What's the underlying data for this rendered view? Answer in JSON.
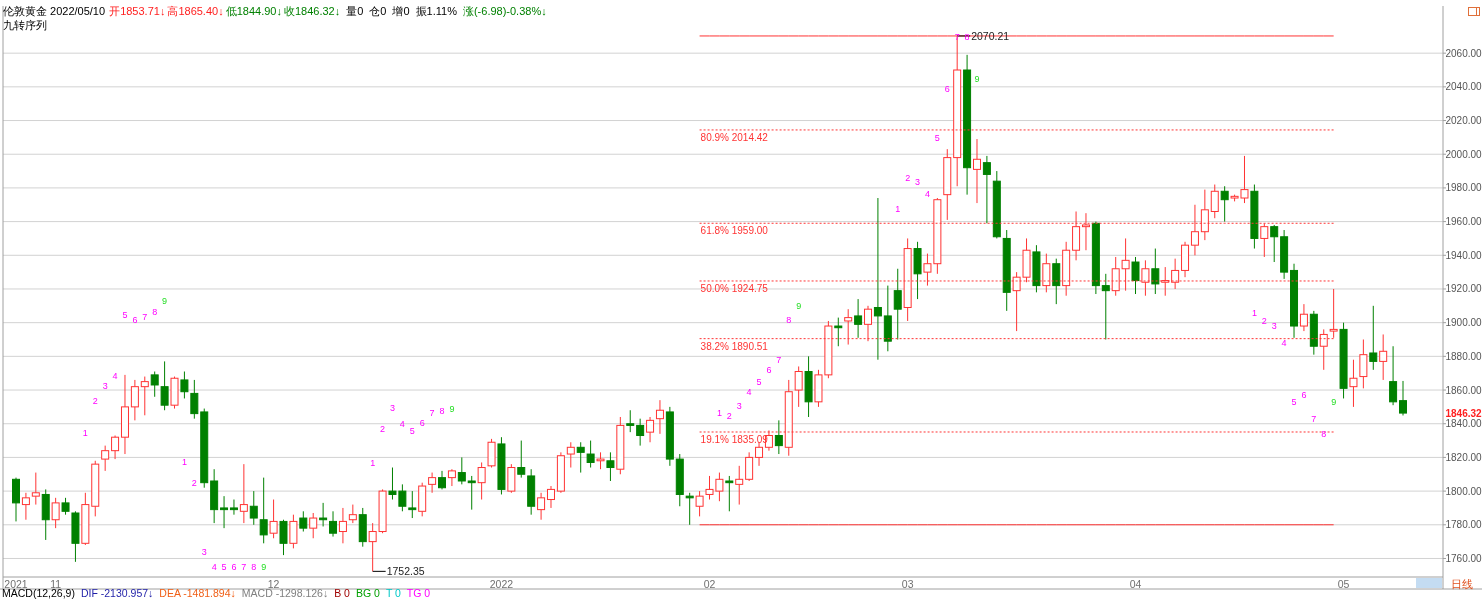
{
  "chart_data": {
    "type": "candlestick",
    "title": "伦敦黄金 2022/05/10",
    "categories": [
      "2021",
      null,
      null,
      null,
      "11",
      null,
      null,
      null,
      null,
      null,
      null,
      null,
      null,
      null,
      null,
      null,
      null,
      null,
      null,
      null,
      null,
      null,
      null,
      null,
      null,
      null,
      "12",
      null,
      null,
      null,
      null,
      null,
      null,
      null,
      null,
      null,
      null,
      null,
      null,
      null,
      null,
      null,
      null,
      null,
      null,
      null,
      null,
      null,
      null,
      "2022",
      null,
      null,
      null,
      null,
      null,
      null,
      null,
      null,
      null,
      null,
      null,
      null,
      null,
      null,
      null,
      null,
      null,
      null,
      null,
      null,
      "02",
      null,
      null,
      null,
      null,
      null,
      null,
      null,
      null,
      null,
      null,
      null,
      null,
      null,
      null,
      null,
      null,
      null,
      null,
      null,
      "03",
      null,
      null,
      null,
      null,
      null,
      null,
      null,
      null,
      null,
      null,
      null,
      null,
      null,
      null,
      null,
      null,
      null,
      null,
      null,
      null,
      null,
      null,
      "04",
      null,
      null,
      null,
      null,
      null,
      null,
      null,
      null,
      null,
      null,
      null,
      null,
      null,
      null,
      null,
      null,
      null,
      null,
      null,
      null,
      "05",
      null,
      null,
      null,
      null,
      null,
      null
    ],
    "ohlc": [
      [
        1807,
        1808,
        1782,
        1793
      ],
      [
        1792,
        1799,
        1783,
        1796
      ],
      [
        1797,
        1811,
        1792,
        1799
      ],
      [
        1798,
        1801,
        1771,
        1783
      ],
      [
        1783,
        1796,
        1778,
        1793
      ],
      [
        1793,
        1796,
        1786,
        1788
      ],
      [
        1787,
        1788,
        1758,
        1769
      ],
      [
        1769,
        1799,
        1768,
        1792
      ],
      [
        1791,
        1818,
        1785,
        1816
      ],
      [
        1819,
        1827,
        1812,
        1824
      ],
      [
        1824,
        1833,
        1819,
        1832
      ],
      [
        1832,
        1869,
        1822,
        1850
      ],
      [
        1850,
        1866,
        1842,
        1862
      ],
      [
        1862,
        1868,
        1845,
        1865
      ],
      [
        1869,
        1871,
        1856,
        1863
      ],
      [
        1862,
        1877,
        1848,
        1851
      ],
      [
        1851,
        1868,
        1849,
        1867
      ],
      [
        1866,
        1871,
        1855,
        1859
      ],
      [
        1858,
        1866,
        1843,
        1846
      ],
      [
        1847,
        1849,
        1802,
        1805
      ],
      [
        1806,
        1813,
        1781,
        1789
      ],
      [
        1790,
        1797,
        1778,
        1789
      ],
      [
        1790,
        1795,
        1786,
        1789
      ],
      [
        1788,
        1816,
        1781,
        1792
      ],
      [
        1791,
        1800,
        1780,
        1784
      ],
      [
        1783,
        1808,
        1769,
        1774
      ],
      [
        1775,
        1795,
        1772,
        1782
      ],
      [
        1782,
        1783,
        1762,
        1769
      ],
      [
        1769,
        1786,
        1766,
        1782
      ],
      [
        1784,
        1788,
        1776,
        1778
      ],
      [
        1778,
        1787,
        1772,
        1784
      ],
      [
        1784,
        1793,
        1779,
        1783
      ],
      [
        1782,
        1788,
        1773,
        1775
      ],
      [
        1776,
        1790,
        1769,
        1782
      ],
      [
        1783,
        1792,
        1781,
        1786
      ],
      [
        1786,
        1790,
        1767,
        1770
      ],
      [
        1770,
        1781,
        1752.35,
        1776
      ],
      [
        1776,
        1801,
        1775,
        1800
      ],
      [
        1800,
        1814,
        1795,
        1798
      ],
      [
        1800,
        1804,
        1788,
        1791
      ],
      [
        1790,
        1800,
        1784,
        1789
      ],
      [
        1788,
        1805,
        1785,
        1803
      ],
      [
        1804,
        1811,
        1799,
        1808
      ],
      [
        1808,
        1812,
        1801,
        1802
      ],
      [
        1808,
        1813,
        1803,
        1812
      ],
      [
        1811,
        1820,
        1804,
        1806
      ],
      [
        1806,
        1809,
        1789,
        1805
      ],
      [
        1805,
        1817,
        1795,
        1814
      ],
      [
        1815,
        1831,
        1814,
        1829
      ],
      [
        1828,
        1832,
        1798,
        1801
      ],
      [
        1800,
        1816,
        1799,
        1814
      ],
      [
        1814,
        1830,
        1808,
        1810
      ],
      [
        1809,
        1813,
        1786,
        1791
      ],
      [
        1789,
        1799,
        1783,
        1796
      ],
      [
        1795,
        1803,
        1790,
        1801
      ],
      [
        1800,
        1823,
        1799,
        1821
      ],
      [
        1822,
        1829,
        1814,
        1826
      ],
      [
        1826,
        1829,
        1811,
        1823
      ],
      [
        1822,
        1830,
        1814,
        1817
      ],
      [
        1818,
        1823,
        1813,
        1819
      ],
      [
        1818,
        1823,
        1806,
        1814
      ],
      [
        1813,
        1844,
        1810,
        1839
      ],
      [
        1840,
        1848,
        1835,
        1839
      ],
      [
        1839,
        1843,
        1827,
        1833
      ],
      [
        1835,
        1844,
        1829,
        1842
      ],
      [
        1843,
        1854,
        1834,
        1848
      ],
      [
        1847,
        1850,
        1815,
        1819
      ],
      [
        1819,
        1822,
        1791,
        1798
      ],
      [
        1797,
        1799,
        1780,
        1796
      ],
      [
        1791,
        1800,
        1785,
        1797
      ],
      [
        1798,
        1809,
        1795,
        1801
      ],
      [
        1800,
        1811,
        1794,
        1807
      ],
      [
        1806,
        1809,
        1788,
        1805
      ],
      [
        1804,
        1815,
        1792,
        1807
      ],
      [
        1807,
        1823,
        1806,
        1820
      ],
      [
        1820,
        1829,
        1815,
        1826
      ],
      [
        1826,
        1836,
        1824,
        1833
      ],
      [
        1833,
        1842,
        1822,
        1827
      ],
      [
        1826,
        1866,
        1821,
        1859
      ],
      [
        1860,
        1874,
        1850,
        1871
      ],
      [
        1871,
        1880,
        1844,
        1853
      ],
      [
        1853,
        1872,
        1850,
        1869
      ],
      [
        1869,
        1901,
        1867,
        1898
      ],
      [
        1898,
        1903,
        1886,
        1897
      ],
      [
        1901,
        1908,
        1887,
        1903
      ],
      [
        1904,
        1914,
        1891,
        1899
      ],
      [
        1899,
        1910,
        1889,
        1908
      ],
      [
        1909,
        1974,
        1878,
        1904
      ],
      [
        1904,
        1922,
        1883,
        1889
      ],
      [
        1919,
        1932,
        1890,
        1908
      ],
      [
        1909,
        1950,
        1901,
        1944
      ],
      [
        1944,
        1948,
        1914,
        1929
      ],
      [
        1930,
        1941,
        1922,
        1935
      ],
      [
        1935,
        1974,
        1929,
        1973
      ],
      [
        1976,
        2003,
        1961,
        1998
      ],
      [
        1998,
        2070.21,
        1981,
        2050
      ],
      [
        2050,
        2059,
        1976,
        1992
      ],
      [
        1991,
        2009,
        1971,
        1997
      ],
      [
        1995,
        1999,
        1959,
        1988
      ],
      [
        1984,
        1990,
        1950,
        1951
      ],
      [
        1950,
        1955,
        1907,
        1918
      ],
      [
        1919,
        1930,
        1895,
        1927
      ],
      [
        1927,
        1950,
        1924,
        1943
      ],
      [
        1942,
        1946,
        1918,
        1922
      ],
      [
        1922,
        1941,
        1918,
        1935
      ],
      [
        1935,
        1938,
        1911,
        1922
      ],
      [
        1922,
        1948,
        1916,
        1943
      ],
      [
        1943,
        1966,
        1937,
        1957
      ],
      [
        1957,
        1965,
        1943,
        1958
      ],
      [
        1959,
        1960,
        1917,
        1922
      ],
      [
        1922,
        1929,
        1890,
        1919
      ],
      [
        1919,
        1939,
        1916,
        1932
      ],
      [
        1932,
        1950,
        1919,
        1937
      ],
      [
        1936,
        1939,
        1917,
        1925
      ],
      [
        1924,
        1937,
        1916,
        1932
      ],
      [
        1932,
        1944,
        1917,
        1923
      ],
      [
        1924,
        1933,
        1916,
        1925
      ],
      [
        1924,
        1938,
        1920,
        1931
      ],
      [
        1931,
        1948,
        1927,
        1946
      ],
      [
        1946,
        1970,
        1940,
        1954
      ],
      [
        1954,
        1979,
        1949,
        1967
      ],
      [
        1966,
        1982,
        1962,
        1978
      ],
      [
        1978,
        1981,
        1960,
        1973
      ],
      [
        1974,
        1976,
        1972,
        1975
      ],
      [
        1974,
        1999,
        1971,
        1979
      ],
      [
        1978,
        1982,
        1944,
        1950
      ],
      [
        1950,
        1959,
        1939,
        1957
      ],
      [
        1957,
        1958,
        1936,
        1951
      ],
      [
        1951,
        1955,
        1926,
        1930
      ],
      [
        1931,
        1935,
        1891,
        1898
      ],
      [
        1898,
        1911,
        1895,
        1905
      ],
      [
        1905,
        1907,
        1881,
        1886
      ],
      [
        1886,
        1896,
        1872,
        1893
      ],
      [
        1895,
        1920,
        1891,
        1896
      ],
      [
        1896,
        1900,
        1855,
        1861
      ],
      [
        1862,
        1878,
        1850,
        1867
      ],
      [
        1868,
        1890,
        1861,
        1881
      ],
      [
        1882,
        1910,
        1872,
        1877
      ],
      [
        1877,
        1893,
        1866,
        1883
      ],
      [
        1865,
        1886,
        1851,
        1853
      ],
      [
        1853.71,
        1865.4,
        1844.9,
        1846.32
      ]
    ],
    "series": [
      {
        "type": "line",
        "color": "#ff3333",
        "line_style": "solid",
        "values": [
          null,
          null,
          null,
          null,
          null,
          null,
          null,
          null,
          null,
          null,
          null,
          null,
          null,
          null,
          null,
          null,
          null,
          null,
          null,
          null,
          null,
          null,
          null,
          null,
          null,
          null,
          null,
          null,
          null,
          null,
          null,
          null,
          null,
          null,
          null,
          null,
          null,
          null,
          null,
          null,
          null,
          null,
          null,
          null,
          null,
          null,
          null,
          null,
          null,
          null,
          null,
          null,
          null,
          null,
          null,
          null,
          null,
          null,
          null,
          null,
          null,
          null,
          null,
          null,
          null,
          null,
          null,
          null,
          null,
          2070.21,
          2070.21,
          2070.21,
          2070.21,
          2070.21,
          2070.21,
          2070.21,
          2070.21,
          2070.21,
          2070.21,
          2070.21,
          2070.21,
          2070.21,
          2070.21,
          2070.21,
          2070.21,
          2070.21,
          2070.21,
          2070.21,
          2070.21,
          2070.21,
          2070.21,
          2070.21,
          2070.21,
          2070.21,
          2070.21,
          2070.21,
          2070.21,
          2070.21,
          2070.21,
          2070.21,
          2070.21,
          2070.21,
          2070.21,
          2070.21,
          2070.21,
          2070.21,
          2070.21,
          2070.21,
          2070.21,
          2070.21,
          2070.21,
          2070.21,
          2070.21,
          2070.21,
          2070.21,
          2070.21,
          2070.21,
          2070.21,
          2070.21,
          2070.21,
          2070.21,
          2070.21,
          2070.21,
          2070.21,
          2070.21,
          2070.21,
          2070.21,
          2070.21,
          2070.21,
          2070.21,
          2070.21,
          2070.21,
          2070.21,
          2070.21,
          null,
          null,
          null,
          null,
          null,
          null,
          null
        ]
      },
      {
        "type": "line",
        "color": "#ff3333",
        "line_style": "dotted",
        "name": "80.9% 2014.42",
        "values": [
          null,
          null,
          null,
          null,
          null,
          null,
          null,
          null,
          null,
          null,
          null,
          null,
          null,
          null,
          null,
          null,
          null,
          null,
          null,
          null,
          null,
          null,
          null,
          null,
          null,
          null,
          null,
          null,
          null,
          null,
          null,
          null,
          null,
          null,
          null,
          null,
          null,
          null,
          null,
          null,
          null,
          null,
          null,
          null,
          null,
          null,
          null,
          null,
          null,
          null,
          null,
          null,
          null,
          null,
          null,
          null,
          null,
          null,
          null,
          null,
          null,
          null,
          null,
          null,
          null,
          null,
          null,
          null,
          null,
          2014.42,
          2014.42,
          2014.42,
          2014.42,
          2014.42,
          2014.42,
          2014.42,
          2014.42,
          2014.42,
          2014.42,
          2014.42,
          2014.42,
          2014.42,
          2014.42,
          2014.42,
          2014.42,
          2014.42,
          2014.42,
          2014.42,
          2014.42,
          2014.42,
          2014.42,
          2014.42,
          2014.42,
          2014.42,
          2014.42,
          2014.42,
          2014.42,
          2014.42,
          2014.42,
          2014.42,
          2014.42,
          2014.42,
          2014.42,
          2014.42,
          2014.42,
          2014.42,
          2014.42,
          2014.42,
          2014.42,
          2014.42,
          2014.42,
          2014.42,
          2014.42,
          2014.42,
          2014.42,
          2014.42,
          2014.42,
          2014.42,
          2014.42,
          2014.42,
          2014.42,
          2014.42,
          2014.42,
          2014.42,
          2014.42,
          2014.42,
          2014.42,
          2014.42,
          2014.42,
          2014.42,
          2014.42,
          2014.42,
          2014.42,
          2014.42,
          null,
          null,
          null,
          null,
          null,
          null,
          null
        ]
      },
      {
        "type": "line",
        "color": "#ff3333",
        "line_style": "dotted",
        "name": "61.8% 1959.00",
        "values": [
          null,
          null,
          null,
          null,
          null,
          null,
          null,
          null,
          null,
          null,
          null,
          null,
          null,
          null,
          null,
          null,
          null,
          null,
          null,
          null,
          null,
          null,
          null,
          null,
          null,
          null,
          null,
          null,
          null,
          null,
          null,
          null,
          null,
          null,
          null,
          null,
          null,
          null,
          null,
          null,
          null,
          null,
          null,
          null,
          null,
          null,
          null,
          null,
          null,
          null,
          null,
          null,
          null,
          null,
          null,
          null,
          null,
          null,
          null,
          null,
          null,
          null,
          null,
          null,
          null,
          null,
          null,
          null,
          null,
          1959.0,
          1959.0,
          1959.0,
          1959.0,
          1959.0,
          1959.0,
          1959.0,
          1959.0,
          1959.0,
          1959.0,
          1959.0,
          1959.0,
          1959.0,
          1959.0,
          1959.0,
          1959.0,
          1959.0,
          1959.0,
          1959.0,
          1959.0,
          1959.0,
          1959.0,
          1959.0,
          1959.0,
          1959.0,
          1959.0,
          1959.0,
          1959.0,
          1959.0,
          1959.0,
          1959.0,
          1959.0,
          1959.0,
          1959.0,
          1959.0,
          1959.0,
          1959.0,
          1959.0,
          1959.0,
          1959.0,
          1959.0,
          1959.0,
          1959.0,
          1959.0,
          1959.0,
          1959.0,
          1959.0,
          1959.0,
          1959.0,
          1959.0,
          1959.0,
          1959.0,
          1959.0,
          1959.0,
          1959.0,
          1959.0,
          1959.0,
          1959.0,
          1959.0,
          1959.0,
          1959.0,
          1959.0,
          1959.0,
          1959.0,
          1959.0,
          null,
          null,
          null,
          null,
          null,
          null,
          null
        ]
      },
      {
        "type": "line",
        "color": "#ff3333",
        "line_style": "dotted",
        "name": "50.0% 1924.75",
        "values": [
          null,
          null,
          null,
          null,
          null,
          null,
          null,
          null,
          null,
          null,
          null,
          null,
          null,
          null,
          null,
          null,
          null,
          null,
          null,
          null,
          null,
          null,
          null,
          null,
          null,
          null,
          null,
          null,
          null,
          null,
          null,
          null,
          null,
          null,
          null,
          null,
          null,
          null,
          null,
          null,
          null,
          null,
          null,
          null,
          null,
          null,
          null,
          null,
          null,
          null,
          null,
          null,
          null,
          null,
          null,
          null,
          null,
          null,
          null,
          null,
          null,
          null,
          null,
          null,
          null,
          null,
          null,
          null,
          null,
          1924.75,
          1924.75,
          1924.75,
          1924.75,
          1924.75,
          1924.75,
          1924.75,
          1924.75,
          1924.75,
          1924.75,
          1924.75,
          1924.75,
          1924.75,
          1924.75,
          1924.75,
          1924.75,
          1924.75,
          1924.75,
          1924.75,
          1924.75,
          1924.75,
          1924.75,
          1924.75,
          1924.75,
          1924.75,
          1924.75,
          1924.75,
          1924.75,
          1924.75,
          1924.75,
          1924.75,
          1924.75,
          1924.75,
          1924.75,
          1924.75,
          1924.75,
          1924.75,
          1924.75,
          1924.75,
          1924.75,
          1924.75,
          1924.75,
          1924.75,
          1924.75,
          1924.75,
          1924.75,
          1924.75,
          1924.75,
          1924.75,
          1924.75,
          1924.75,
          1924.75,
          1924.75,
          1924.75,
          1924.75,
          1924.75,
          1924.75,
          1924.75,
          1924.75,
          1924.75,
          1924.75,
          1924.75,
          1924.75,
          1924.75,
          1924.75,
          null,
          null,
          null,
          null,
          null,
          null,
          null
        ]
      },
      {
        "type": "line",
        "color": "#ff3333",
        "line_style": "dotted",
        "name": "38.2% 1890.51",
        "values": [
          null,
          null,
          null,
          null,
          null,
          null,
          null,
          null,
          null,
          null,
          null,
          null,
          null,
          null,
          null,
          null,
          null,
          null,
          null,
          null,
          null,
          null,
          null,
          null,
          null,
          null,
          null,
          null,
          null,
          null,
          null,
          null,
          null,
          null,
          null,
          null,
          null,
          null,
          null,
          null,
          null,
          null,
          null,
          null,
          null,
          null,
          null,
          null,
          null,
          null,
          null,
          null,
          null,
          null,
          null,
          null,
          null,
          null,
          null,
          null,
          null,
          null,
          null,
          null,
          null,
          null,
          null,
          null,
          null,
          1890.51,
          1890.51,
          1890.51,
          1890.51,
          1890.51,
          1890.51,
          1890.51,
          1890.51,
          1890.51,
          1890.51,
          1890.51,
          1890.51,
          1890.51,
          1890.51,
          1890.51,
          1890.51,
          1890.51,
          1890.51,
          1890.51,
          1890.51,
          1890.51,
          1890.51,
          1890.51,
          1890.51,
          1890.51,
          1890.51,
          1890.51,
          1890.51,
          1890.51,
          1890.51,
          1890.51,
          1890.51,
          1890.51,
          1890.51,
          1890.51,
          1890.51,
          1890.51,
          1890.51,
          1890.51,
          1890.51,
          1890.51,
          1890.51,
          1890.51,
          1890.51,
          1890.51,
          1890.51,
          1890.51,
          1890.51,
          1890.51,
          1890.51,
          1890.51,
          1890.51,
          1890.51,
          1890.51,
          1890.51,
          1890.51,
          1890.51,
          1890.51,
          1890.51,
          1890.51,
          1890.51,
          1890.51,
          1890.51,
          1890.51,
          1890.51,
          null,
          null,
          null,
          null,
          null,
          null,
          null
        ]
      },
      {
        "type": "line",
        "color": "#ff3333",
        "line_style": "dotted",
        "name": "19.1% 1835.09",
        "values": [
          null,
          null,
          null,
          null,
          null,
          null,
          null,
          null,
          null,
          null,
          null,
          null,
          null,
          null,
          null,
          null,
          null,
          null,
          null,
          null,
          null,
          null,
          null,
          null,
          null,
          null,
          null,
          null,
          null,
          null,
          null,
          null,
          null,
          null,
          null,
          null,
          null,
          null,
          null,
          null,
          null,
          null,
          null,
          null,
          null,
          null,
          null,
          null,
          null,
          null,
          null,
          null,
          null,
          null,
          null,
          null,
          null,
          null,
          null,
          null,
          null,
          null,
          null,
          null,
          null,
          null,
          null,
          null,
          null,
          1835.09,
          1835.09,
          1835.09,
          1835.09,
          1835.09,
          1835.09,
          1835.09,
          1835.09,
          1835.09,
          1835.09,
          1835.09,
          1835.09,
          1835.09,
          1835.09,
          1835.09,
          1835.09,
          1835.09,
          1835.09,
          1835.09,
          1835.09,
          1835.09,
          1835.09,
          1835.09,
          1835.09,
          1835.09,
          1835.09,
          1835.09,
          1835.09,
          1835.09,
          1835.09,
          1835.09,
          1835.09,
          1835.09,
          1835.09,
          1835.09,
          1835.09,
          1835.09,
          1835.09,
          1835.09,
          1835.09,
          1835.09,
          1835.09,
          1835.09,
          1835.09,
          1835.09,
          1835.09,
          1835.09,
          1835.09,
          1835.09,
          1835.09,
          1835.09,
          1835.09,
          1835.09,
          1835.09,
          1835.09,
          1835.09,
          1835.09,
          1835.09,
          1835.09,
          1835.09,
          1835.09,
          1835.09,
          1835.09,
          1835.09,
          1835.09,
          null,
          null,
          null,
          null,
          null,
          null,
          null
        ]
      },
      {
        "type": "line",
        "color": "#ff3333",
        "line_style": "solid",
        "values": [
          null,
          null,
          null,
          null,
          null,
          null,
          null,
          null,
          null,
          null,
          null,
          null,
          null,
          null,
          null,
          null,
          null,
          null,
          null,
          null,
          null,
          null,
          null,
          null,
          null,
          null,
          null,
          null,
          null,
          null,
          null,
          null,
          null,
          null,
          null,
          null,
          null,
          null,
          null,
          null,
          null,
          null,
          null,
          null,
          null,
          null,
          null,
          null,
          null,
          null,
          null,
          null,
          null,
          null,
          null,
          null,
          null,
          null,
          null,
          null,
          null,
          null,
          null,
          null,
          null,
          null,
          null,
          null,
          null,
          1780,
          1780,
          1780,
          1780,
          1780,
          1780,
          1780,
          1780,
          1780,
          1780,
          1780,
          1780,
          1780,
          1780,
          1780,
          1780,
          1780,
          1780,
          1780,
          1780,
          1780,
          1780,
          1780,
          1780,
          1780,
          1780,
          1780,
          1780,
          1780,
          1780,
          1780,
          1780,
          1780,
          1780,
          1780,
          1780,
          1780,
          1780,
          1780,
          1780,
          1780,
          1780,
          1780,
          1780,
          1780,
          1780,
          1780,
          1780,
          1780,
          1780,
          1780,
          1780,
          1780,
          1780,
          1780,
          1780,
          1780,
          1780,
          1780,
          1780,
          1780,
          1780,
          1780,
          1780,
          1780,
          null,
          null,
          null,
          null,
          null,
          null,
          null
        ]
      }
    ],
    "ylim": [
      1749,
      2088
    ],
    "yticks": [
      {
        "value": 1760,
        "label": "1760.00"
      },
      {
        "value": 1780,
        "label": "1780.00"
      },
      {
        "value": 1800,
        "label": "1800.00"
      },
      {
        "value": 1820,
        "label": "1820.00"
      },
      {
        "value": 1840,
        "label": "1840.00"
      },
      {
        "value": 1860,
        "label": "1860.00"
      },
      {
        "value": 1880,
        "label": "1880.00"
      },
      {
        "value": 1900,
        "label": "1900.00"
      },
      {
        "value": 1920,
        "label": "1920.00"
      },
      {
        "value": 1940,
        "label": "1940.00"
      },
      {
        "value": 1960,
        "label": "1960.00"
      },
      {
        "value": 1980,
        "label": "1980.00"
      },
      {
        "value": 2000,
        "label": "2000.00"
      },
      {
        "value": 2020,
        "label": "2020.00"
      },
      {
        "value": 2040,
        "label": "2040.00"
      },
      {
        "value": 2060,
        "label": "2060.00"
      }
    ],
    "grid": "y",
    "annotations": [
      "开1853.71↓",
      "高1865.40↓",
      "低1844.90↓",
      "收1846.32↓",
      "量0",
      "仓0",
      "增0",
      "振1.11%",
      "涨(-6.98)-0.38%↓",
      "九转序列",
      "MACD(12,26,9)",
      "DIF -2130.957↓",
      "DEA -1481.894↓",
      "MACD -1298.126↓",
      "B 0",
      "BG 0",
      "T 0",
      "TG 0",
      "日线",
      "2070.21",
      "1752.35",
      "1846.32",
      "1",
      "2",
      "3",
      "4",
      "5",
      "6",
      "7",
      "8",
      "9",
      "1",
      "2",
      "3",
      "4",
      "5",
      "6",
      "7",
      "8",
      "9",
      "1",
      "2",
      "3",
      "4",
      "5",
      "6",
      "7",
      "8",
      "9",
      "1",
      "2",
      "3",
      "4",
      "5",
      "6",
      "7",
      "8",
      "9",
      "1",
      "2",
      "3",
      "4",
      "5",
      "6",
      "7",
      "8",
      "9",
      "1",
      "2",
      "3",
      "4",
      "5",
      "6",
      "7",
      "8",
      "9"
    ]
  }
}
